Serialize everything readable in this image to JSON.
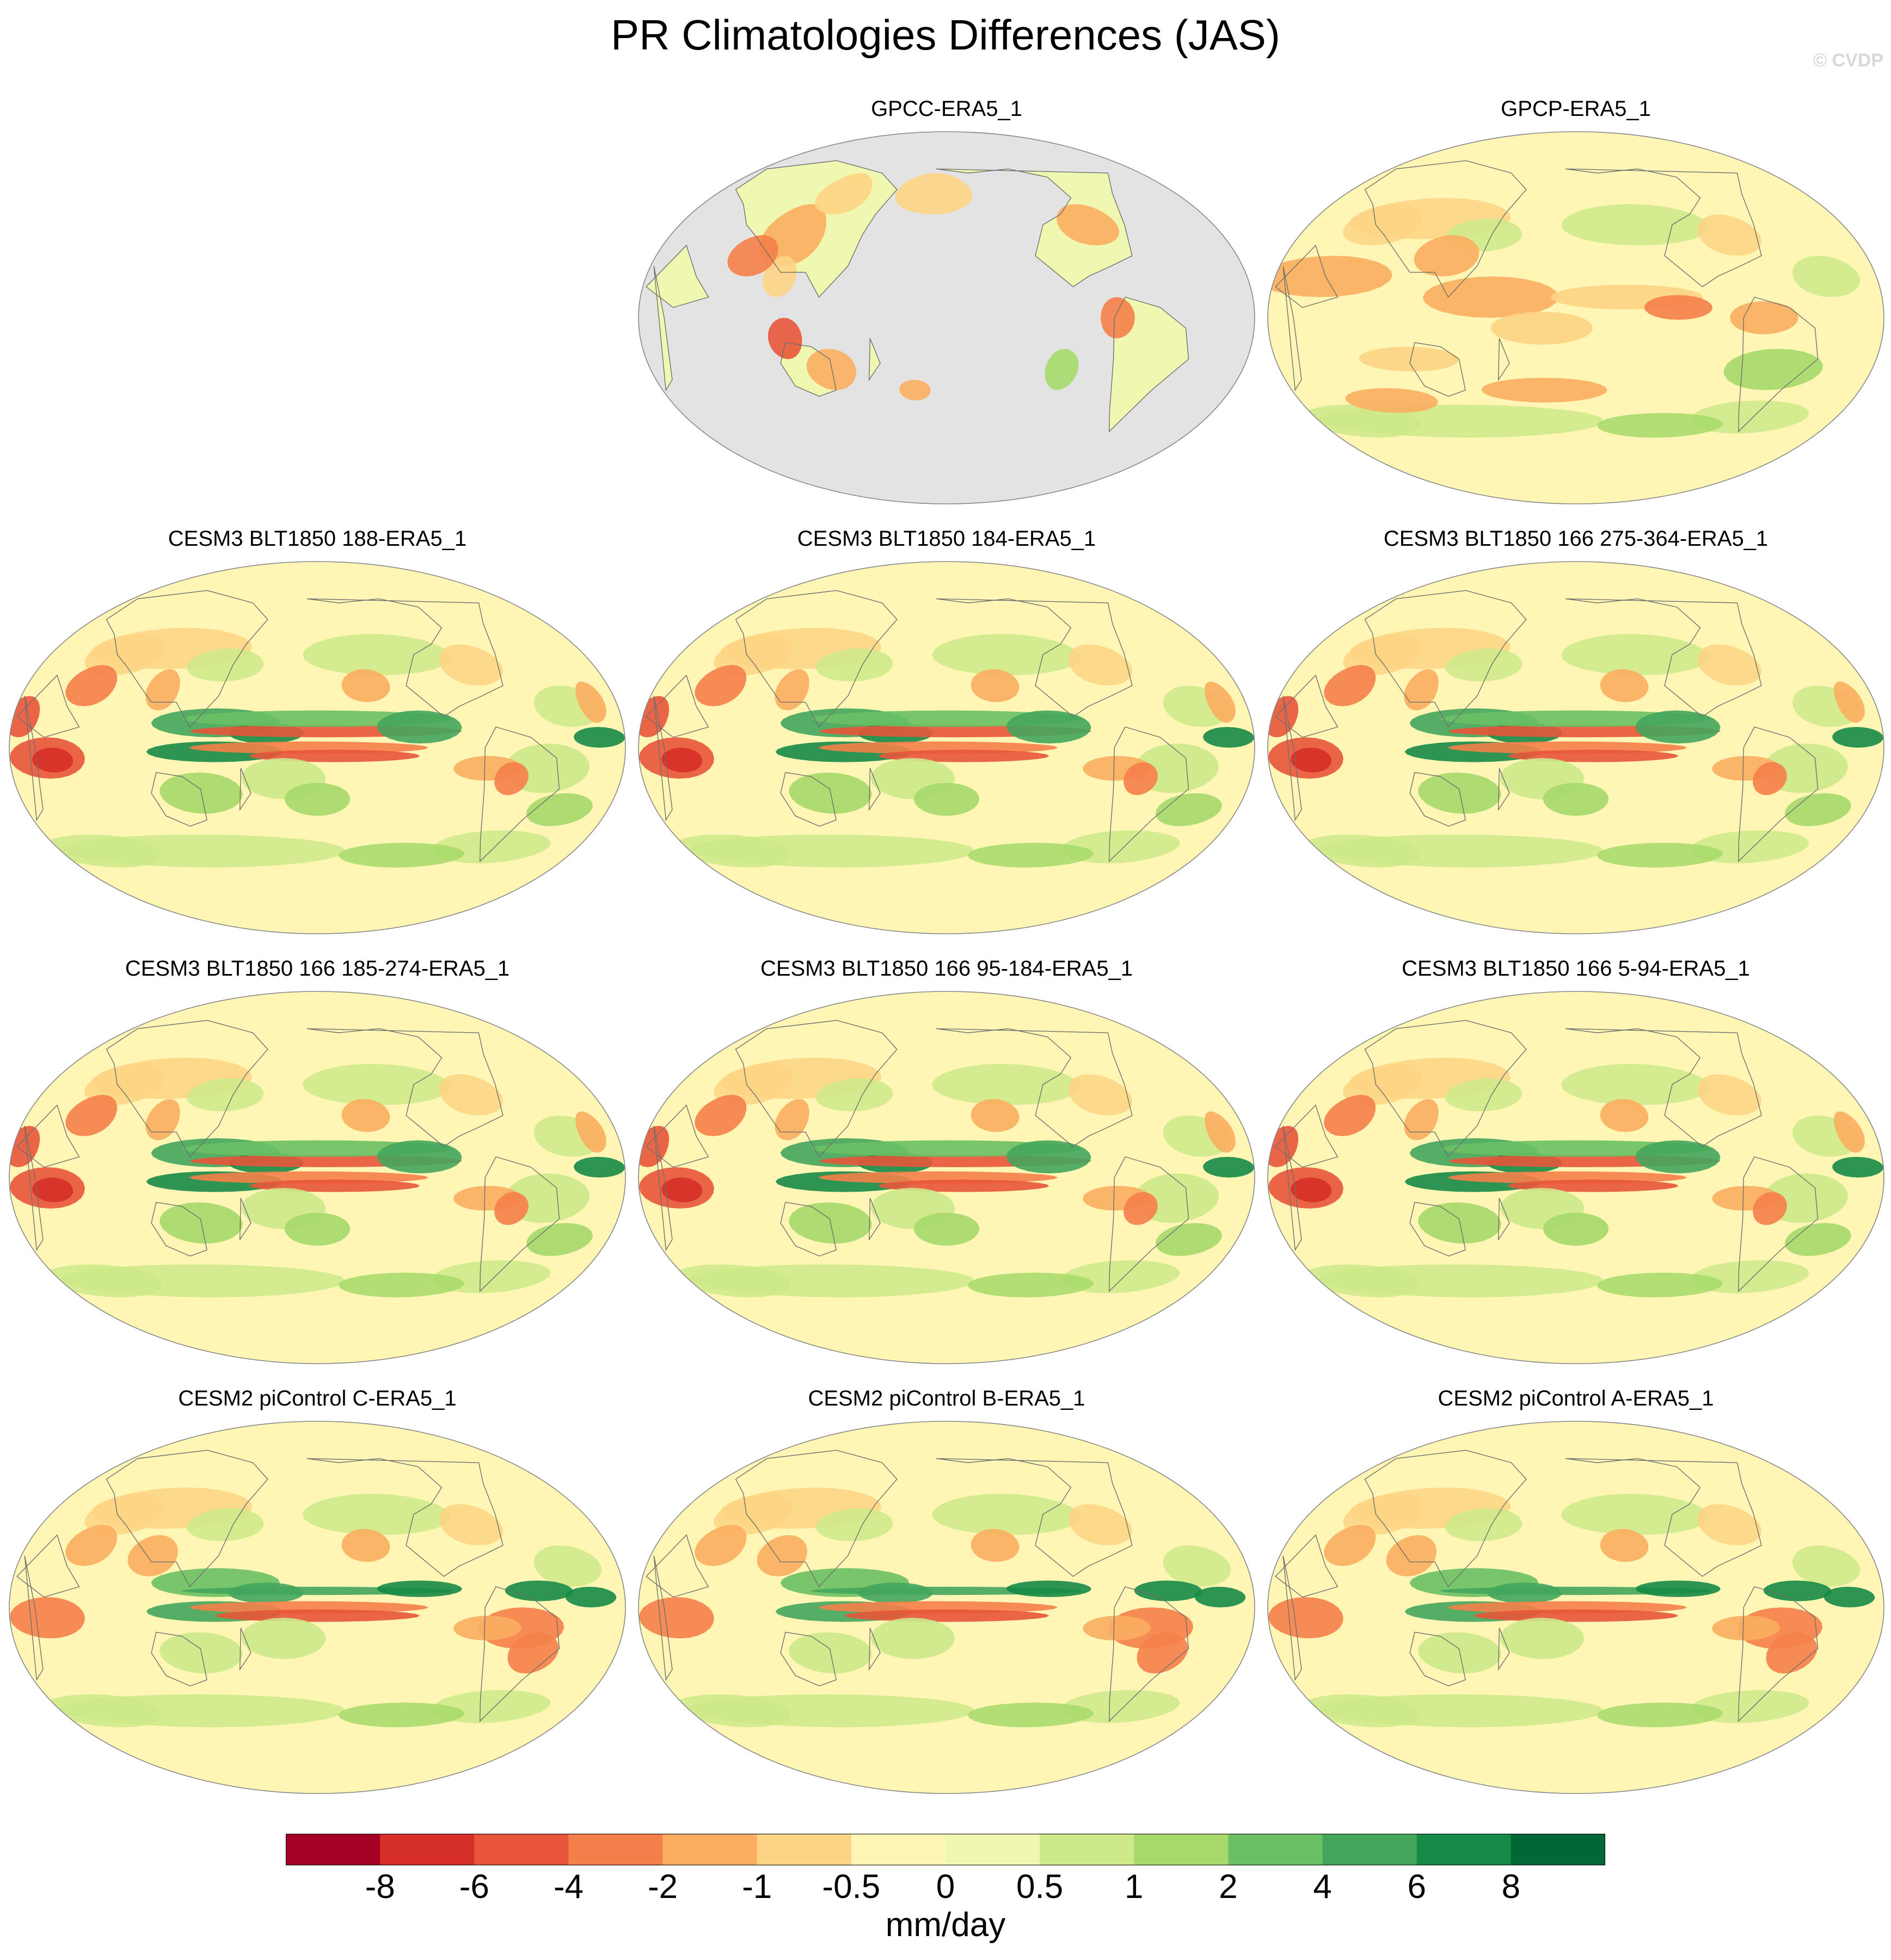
{
  "title": "PR Climatologies Differences (JAS)",
  "watermark": "© CVDP",
  "chart_data": {
    "type": "heatmap",
    "projection": "robinson",
    "variable": "PR",
    "season": "JAS",
    "units": "mm/day",
    "panels": [
      {
        "title": "GPCC-ERA5_1",
        "land_only": true
      },
      {
        "title": "GPCP-ERA5_1",
        "land_only": false
      },
      {
        "title": "CESM3 BLT1850 188-ERA5_1",
        "land_only": false
      },
      {
        "title": "CESM3 BLT1850 184-ERA5_1",
        "land_only": false
      },
      {
        "title": "CESM3 BLT1850 166 275-364-ERA5_1",
        "land_only": false
      },
      {
        "title": "CESM3 BLT1850 166 185-274-ERA5_1",
        "land_only": false
      },
      {
        "title": "CESM3 BLT1850 166 95-184-ERA5_1",
        "land_only": false
      },
      {
        "title": "CESM3 BLT1850 166 5-94-ERA5_1",
        "land_only": false
      },
      {
        "title": "CESM2 piControl C-ERA5_1",
        "land_only": false
      },
      {
        "title": "CESM2 piControl B-ERA5_1",
        "land_only": false
      },
      {
        "title": "CESM2 piControl A-ERA5_1",
        "land_only": false
      }
    ],
    "colorbar": {
      "levels": [
        -8,
        -6,
        -4,
        -2,
        -1,
        -0.5,
        0,
        0.5,
        1,
        2,
        4,
        6,
        8
      ],
      "tick_labels": [
        "-8",
        "-6",
        "-4",
        "-2",
        "-1",
        "-0.5",
        "0",
        "0.5",
        "1",
        "2",
        "4",
        "6",
        "8"
      ],
      "colors": [
        "#a50026",
        "#d62f27",
        "#e8553a",
        "#f57f4a",
        "#fbae61",
        "#fdd484",
        "#fff5b5",
        "#eff7b0",
        "#cde989",
        "#a6d96a",
        "#6ac064",
        "#44a55c",
        "#168a46",
        "#006837"
      ],
      "units": "mm/day"
    },
    "missing_color": "#e3e3e3"
  }
}
